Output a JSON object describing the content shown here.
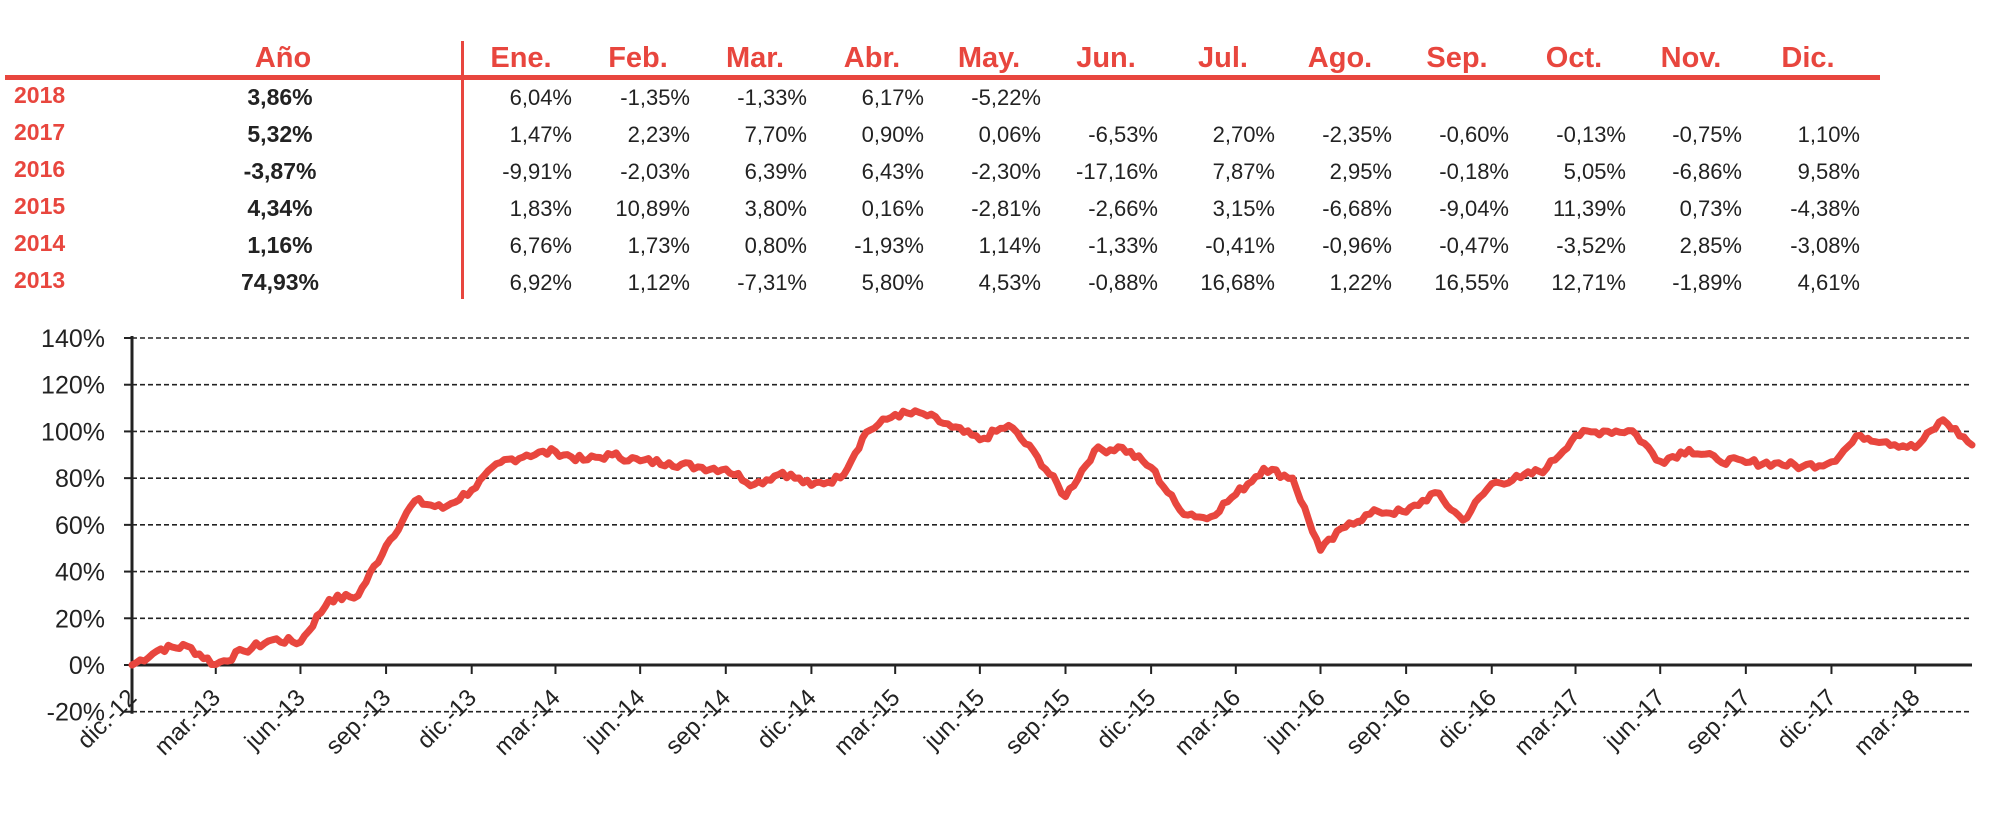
{
  "corner_text": "",
  "table": {
    "headers": [
      "Año",
      "Ene.",
      "Feb.",
      "Mar.",
      "Abr.",
      "May.",
      "Jun.",
      "Jul.",
      "Ago.",
      "Sep.",
      "Oct.",
      "Nov.",
      "Dic."
    ],
    "rows": [
      {
        "year": "2018",
        "total": "3,86%",
        "months": [
          "6,04%",
          "-1,35%",
          "-1,33%",
          "6,17%",
          "-5,22%",
          "",
          "",
          "",
          "",
          "",
          "",
          ""
        ]
      },
      {
        "year": "2017",
        "total": "5,32%",
        "months": [
          "1,47%",
          "2,23%",
          "7,70%",
          "0,90%",
          "0,06%",
          "-6,53%",
          "2,70%",
          "-2,35%",
          "-0,60%",
          "-0,13%",
          "-0,75%",
          "1,10%"
        ]
      },
      {
        "year": "2016",
        "total": "-3,87%",
        "months": [
          "-9,91%",
          "-2,03%",
          "6,39%",
          "6,43%",
          "-2,30%",
          "-17,16%",
          "7,87%",
          "2,95%",
          "-0,18%",
          "5,05%",
          "-6,86%",
          "9,58%"
        ]
      },
      {
        "year": "2015",
        "total": "4,34%",
        "months": [
          "1,83%",
          "10,89%",
          "3,80%",
          "0,16%",
          "-2,81%",
          "-2,66%",
          "3,15%",
          "-6,68%",
          "-9,04%",
          "11,39%",
          "0,73%",
          "-4,38%"
        ]
      },
      {
        "year": "2014",
        "total": "1,16%",
        "months": [
          "6,76%",
          "1,73%",
          "0,80%",
          "-1,93%",
          "1,14%",
          "-1,33%",
          "-0,41%",
          "-0,96%",
          "-0,47%",
          "-3,52%",
          "2,85%",
          "-3,08%"
        ]
      },
      {
        "year": "2013",
        "total": "74,93%",
        "months": [
          "6,92%",
          "1,12%",
          "-7,31%",
          "5,80%",
          "4,53%",
          "-0,88%",
          "16,68%",
          "1,22%",
          "16,55%",
          "12,71%",
          "-1,89%",
          "4,61%"
        ]
      }
    ]
  },
  "chart_data": {
    "type": "line",
    "title": "",
    "xlabel": "",
    "ylabel": "",
    "ylim": [
      -20,
      140
    ],
    "y_ticks": [
      "-20%",
      "0%",
      "20%",
      "40%",
      "60%",
      "80%",
      "100%",
      "120%",
      "140%"
    ],
    "x_tick_labels": [
      "dic.-12",
      "mar.-13",
      "jun.-13",
      "sep.-13",
      "dic.-13",
      "mar.-14",
      "jun.-14",
      "sep.-14",
      "dic.-14",
      "mar.-15",
      "jun.-15",
      "sep.-15",
      "dic.-15",
      "mar.-16",
      "jun.-16",
      "sep.-16",
      "dic.-16",
      "mar.-17",
      "jun.-17",
      "sep.-17",
      "dic.-17",
      "mar.-18"
    ],
    "grid": "horizontal dashed",
    "line_color": "#e8463e",
    "series": [
      {
        "name": "",
        "x": [
          "2012-12-31",
          "2013-01-31",
          "2013-02-28",
          "2013-03-31",
          "2013-04-30",
          "2013-05-31",
          "2013-06-30",
          "2013-07-31",
          "2013-08-31",
          "2013-09-30",
          "2013-10-31",
          "2013-11-30",
          "2013-12-31",
          "2014-01-31",
          "2014-02-28",
          "2014-03-31",
          "2014-04-30",
          "2014-05-31",
          "2014-06-30",
          "2014-07-31",
          "2014-08-31",
          "2014-09-30",
          "2014-10-31",
          "2014-11-30",
          "2014-12-31",
          "2015-01-31",
          "2015-02-28",
          "2015-03-31",
          "2015-04-30",
          "2015-05-31",
          "2015-06-30",
          "2015-07-31",
          "2015-08-31",
          "2015-09-30",
          "2015-10-31",
          "2015-11-30",
          "2015-12-31",
          "2016-01-31",
          "2016-02-29",
          "2016-03-31",
          "2016-04-30",
          "2016-05-31",
          "2016-06-30",
          "2016-07-31",
          "2016-08-31",
          "2016-09-30",
          "2016-10-31",
          "2016-11-30",
          "2016-12-31",
          "2017-01-31",
          "2017-02-28",
          "2017-03-31",
          "2017-04-30",
          "2017-05-31",
          "2017-06-30",
          "2017-07-31",
          "2017-08-31",
          "2017-09-30",
          "2017-10-31",
          "2017-11-30",
          "2017-12-31",
          "2018-01-31",
          "2018-02-28",
          "2018-03-31",
          "2018-04-30",
          "2018-05-31"
        ],
        "values": [
          0,
          6.9,
          8.1,
          0.2,
          6.0,
          10.8,
          9.8,
          28.1,
          29.7,
          51.1,
          70.3,
          67.1,
          74.9,
          86.7,
          89.9,
          91.4,
          87.7,
          89.9,
          87.4,
          86.6,
          84.8,
          83.9,
          77.4,
          82.5,
          76.9,
          80.1,
          99.7,
          107.3,
          107.6,
          101.8,
          96.4,
          102.6,
          89.1,
          72.1,
          91.7,
          93.1,
          84.6,
          66.3,
          62.6,
          73.0,
          84.2,
          80.0,
          49.1,
          60.9,
          65.7,
          65.4,
          73.8,
          62.0,
          77.6,
          80.2,
          84.2,
          98.4,
          100.2,
          100.3,
          87.2,
          92.3,
          87.8,
          86.7,
          86.4,
          85.0,
          87.0,
          98.3,
          95.6,
          93.0,
          105.0,
          94.2
        ]
      }
    ]
  }
}
